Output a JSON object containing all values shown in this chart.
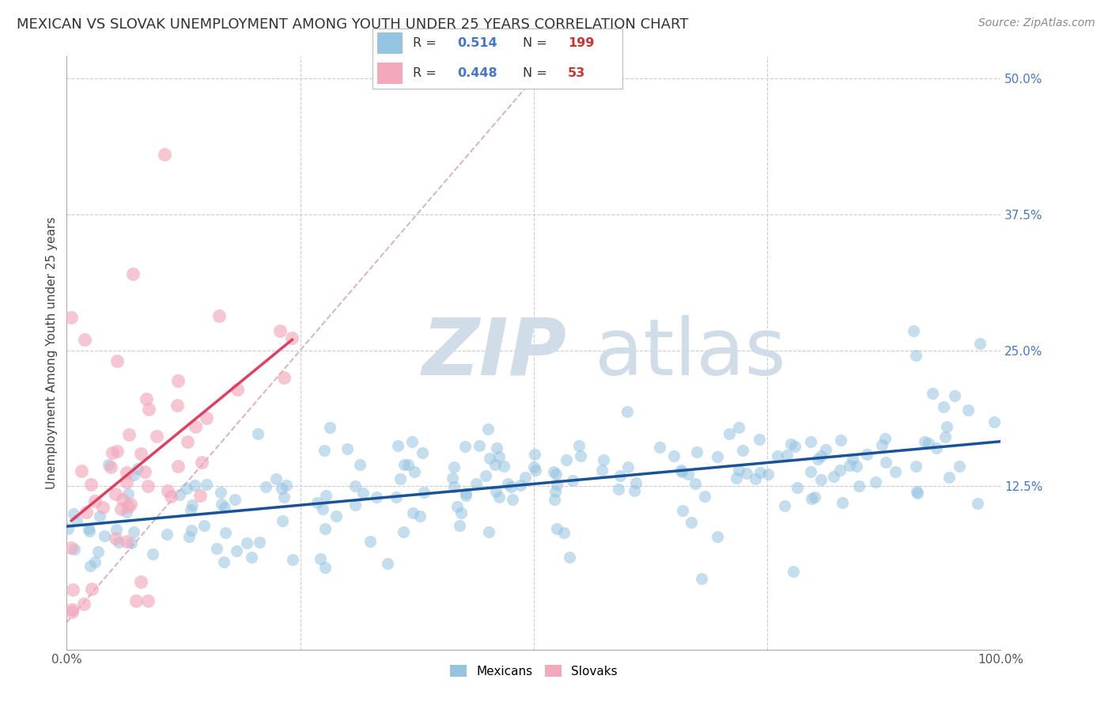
{
  "title": "MEXICAN VS SLOVAK UNEMPLOYMENT AMONG YOUTH UNDER 25 YEARS CORRELATION CHART",
  "source": "Source: ZipAtlas.com",
  "ylabel": "Unemployment Among Youth under 25 years",
  "xlim": [
    0.0,
    1.0
  ],
  "ylim": [
    -0.025,
    0.52
  ],
  "xtick_positions": [
    0.0,
    0.25,
    0.5,
    0.75,
    1.0
  ],
  "xticklabels": [
    "0.0%",
    "",
    "",
    "",
    "100.0%"
  ],
  "ytick_positions": [
    0.0,
    0.125,
    0.25,
    0.375,
    0.5
  ],
  "ytick_labels": [
    "",
    "12.5%",
    "25.0%",
    "37.5%",
    "50.0%"
  ],
  "mexican_color": "#94c4e0",
  "slovak_color": "#f4a8bc",
  "mexican_line_color": "#1a5296",
  "slovak_line_color": "#e04060",
  "diagonal_color": "#e0b0b8",
  "legend_R_color": "#4477cc",
  "legend_N_color": "#cc3333",
  "watermark_zip_color": "#d0dde8",
  "watermark_atlas_color": "#d0dde8",
  "background_color": "#ffffff",
  "grid_color": "#cccccc",
  "title_fontsize": 13,
  "axis_fontsize": 11,
  "tick_fontsize": 11,
  "ytick_color": "#4477cc",
  "mexican_R": 0.514,
  "mexican_N": 199,
  "slovak_R": 0.448,
  "slovak_N": 53
}
